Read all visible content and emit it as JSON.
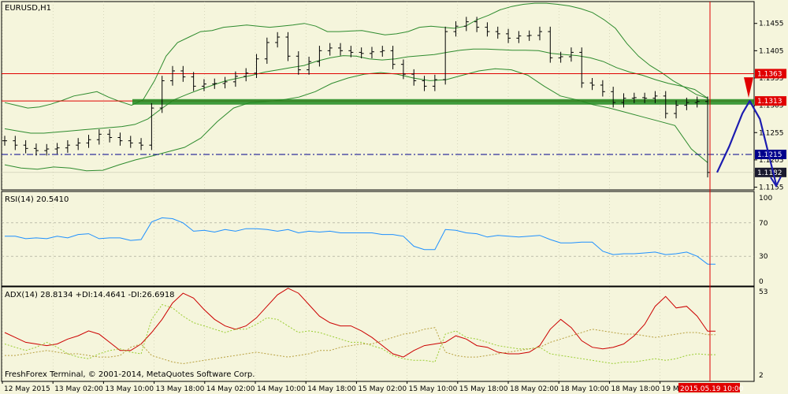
{
  "colors": {
    "background": "#f5f5dc",
    "frame": "#000000",
    "grid": "#b8b89a",
    "candles": "#000000",
    "bollinger": "#2e8b2e",
    "hline_red": "#e00000",
    "hline_green": "#1f8a1f",
    "hline_blue_dash": "#00008b",
    "price_tag_red": "#e00000",
    "price_tag_blue": "#00008b",
    "rsi_line": "#1e90ff",
    "adx_line": "#cc0000",
    "di_plus": "#9acd32",
    "di_minus": "#b8a040",
    "forecast_curve": "#1c1cb0",
    "forecast_arrow_down": "#e00000",
    "vline": "#e00000",
    "date_tag": "#e00000"
  },
  "chart_data": [
    {
      "type": "candlestick",
      "title": "EURUSD,H1",
      "ylim": [
        1.115,
        1.1495
      ],
      "y_ticks": [
        "1.1455",
        "1.1405",
        "1.1355",
        "1.1305",
        "1.1255",
        "1.1205",
        "1.1155"
      ],
      "x_ticks": [
        "12 May 2015",
        "13 May 02:00",
        "13 May 10:00",
        "13 May 18:00",
        "14 May 02:00",
        "14 May 10:00",
        "14 May 18:00",
        "15 May 02:00",
        "15 May 10:00",
        "15 May 18:00",
        "18 May 02:00",
        "18 May 10:00",
        "18 May 18:00",
        "19 May"
      ],
      "closes": [
        1.124,
        1.1232,
        1.1226,
        1.1222,
        1.1225,
        1.1227,
        1.1232,
        1.1236,
        1.1242,
        1.1252,
        1.1246,
        1.124,
        1.1236,
        1.1232,
        1.13,
        1.135,
        1.1368,
        1.1357,
        1.134,
        1.1344,
        1.1345,
        1.1348,
        1.1358,
        1.1364,
        1.139,
        1.142,
        1.143,
        1.1395,
        1.137,
        1.1385,
        1.1405,
        1.141,
        1.1405,
        1.1402,
        1.14,
        1.1403,
        1.1405,
        1.138,
        1.1362,
        1.135,
        1.134,
        1.1352,
        1.144,
        1.145,
        1.1458,
        1.1448,
        1.144,
        1.1436,
        1.1428,
        1.1432,
        1.1433,
        1.144,
        1.1392,
        1.1394,
        1.1402,
        1.1346,
        1.1342,
        1.133,
        1.131,
        1.1318,
        1.1319,
        1.1318,
        1.1322,
        1.129,
        1.1305,
        1.131,
        1.1312,
        1.1182
      ],
      "bb_upper": [
        1.131,
        1.1305,
        1.13,
        1.1302,
        1.1307,
        1.1314,
        1.1322,
        1.1326,
        1.133,
        1.132,
        1.1312,
        1.1305,
        1.1315,
        1.135,
        1.1395,
        1.142,
        1.143,
        1.144,
        1.1442,
        1.1448,
        1.145,
        1.1452,
        1.145,
        1.1448,
        1.145,
        1.1452,
        1.1455,
        1.145,
        1.144,
        1.144,
        1.1441,
        1.1442,
        1.1438,
        1.1434,
        1.1436,
        1.144,
        1.1448,
        1.145,
        1.1448,
        1.1446,
        1.145,
        1.1462,
        1.147,
        1.148,
        1.1486,
        1.149,
        1.1492,
        1.1492,
        1.149,
        1.1487,
        1.1482,
        1.1475,
        1.1462,
        1.1446,
        1.1418,
        1.1395,
        1.1378,
        1.1365,
        1.135,
        1.1338,
        1.1325,
        1.1318
      ],
      "bb_mid": [
        1.1262,
        1.1258,
        1.1254,
        1.1254,
        1.1256,
        1.1258,
        1.126,
        1.1262,
        1.1264,
        1.1266,
        1.127,
        1.128,
        1.1298,
        1.1315,
        1.1325,
        1.1334,
        1.1342,
        1.135,
        1.1355,
        1.136,
        1.1366,
        1.137,
        1.1374,
        1.1378,
        1.1386,
        1.1392,
        1.1396,
        1.1395,
        1.139,
        1.1388,
        1.139,
        1.1394,
        1.1396,
        1.1398,
        1.1402,
        1.1406,
        1.1408,
        1.1408,
        1.1407,
        1.1406,
        1.1406,
        1.1405,
        1.14,
        1.1398,
        1.1396,
        1.1392,
        1.1385,
        1.1374,
        1.1366,
        1.136,
        1.1352,
        1.1345,
        1.134,
        1.1334,
        1.1318
      ],
      "bb_lower": [
        1.1196,
        1.119,
        1.1188,
        1.1192,
        1.119,
        1.1185,
        1.1186,
        1.1196,
        1.1205,
        1.1212,
        1.122,
        1.1228,
        1.1245,
        1.1275,
        1.13,
        1.131,
        1.1312,
        1.1315,
        1.132,
        1.133,
        1.1345,
        1.1355,
        1.1362,
        1.1365,
        1.1362,
        1.1355,
        1.135,
        1.1352,
        1.136,
        1.1368,
        1.1372,
        1.137,
        1.136,
        1.134,
        1.1322,
        1.1315,
        1.1306,
        1.13,
        1.1292,
        1.1284,
        1.1276,
        1.1268,
        1.1225,
        1.12
      ],
      "hlines": [
        {
          "label": "1.1363",
          "value": 1.1363,
          "style": "red"
        },
        {
          "label": "1.1313",
          "value": 1.1313,
          "style": "red"
        },
        {
          "label": "",
          "value": 1.1312,
          "style": "green-zone"
        },
        {
          "label": "1.1215",
          "value": 1.1215,
          "style": "blue-dash"
        },
        {
          "label": "1.1182",
          "value": 1.1182,
          "style": "current"
        }
      ],
      "vline_label": "2015.05.19 10:00",
      "forecast_points": [
        [
          1.1182,
          0
        ],
        [
          1.123,
          0.3
        ],
        [
          1.129,
          0.62
        ],
        [
          1.1313,
          0.8
        ],
        [
          1.128,
          1.05
        ],
        [
          1.116,
          1.45
        ]
      ]
    },
    {
      "type": "line",
      "title": "RSI(14) 20.5410",
      "ylim": [
        0,
        100
      ],
      "y_ticks": [
        "100",
        "70",
        "30",
        "0"
      ],
      "levels": [
        70,
        30
      ],
      "values": [
        54,
        54,
        51,
        52,
        51,
        54,
        52,
        56,
        57,
        51,
        52,
        52,
        49,
        50,
        71,
        76,
        75,
        70,
        60,
        61,
        59,
        62,
        60,
        63,
        63,
        62,
        60,
        62,
        58,
        60,
        59,
        60,
        58,
        58,
        58,
        58,
        56,
        56,
        54,
        42,
        38,
        38,
        62,
        61,
        58,
        57,
        53,
        55,
        54,
        53,
        54,
        55,
        50,
        46,
        46,
        47,
        47,
        36,
        32,
        33,
        33,
        34,
        35,
        32,
        33,
        35,
        30,
        20.54
      ]
    },
    {
      "type": "line",
      "title": "ADX(14) 28.8134 +DI:14.4641 -DI:26.6918",
      "ylim": [
        2,
        53
      ],
      "y_ticks": [
        "53",
        "2"
      ],
      "series": [
        {
          "name": "ADX",
          "values": [
            28,
            25,
            22,
            21,
            20,
            21,
            24,
            26,
            29,
            27,
            22,
            17,
            17,
            21,
            28,
            36,
            46,
            52,
            49,
            42,
            36,
            32,
            30,
            32,
            37,
            44,
            51,
            55,
            52,
            45,
            38,
            34,
            32,
            32,
            29,
            25,
            20,
            15,
            13,
            17,
            20,
            21,
            22,
            26,
            24,
            20,
            19,
            16,
            15,
            15,
            16,
            20,
            30,
            36,
            31,
            23,
            19,
            18,
            19,
            21,
            26,
            33,
            44,
            50,
            43,
            44,
            38,
            28.8
          ]
        },
        {
          "name": "+DI",
          "values": [
            21,
            19,
            17,
            19,
            22,
            19,
            15,
            13,
            12,
            15,
            17,
            18,
            16,
            15,
            36,
            45,
            43,
            38,
            34,
            32,
            30,
            28,
            30,
            30,
            33,
            37,
            36,
            32,
            28,
            29,
            28,
            26,
            24,
            22,
            22,
            20,
            18,
            14,
            12,
            11,
            11,
            10,
            27,
            29,
            25,
            24,
            22,
            20,
            19,
            18,
            18,
            19,
            15,
            14,
            13,
            12,
            11,
            10,
            9,
            10,
            10,
            11,
            12,
            11,
            12,
            14,
            15,
            14.46
          ]
        },
        {
          "name": "-DI",
          "values": [
            14,
            14,
            15,
            16,
            17,
            16,
            15,
            15,
            14,
            13,
            13,
            14,
            19,
            21,
            14,
            12,
            10,
            9,
            10,
            11,
            12,
            13,
            14,
            15,
            16,
            15,
            14,
            13,
            14,
            15,
            17,
            17,
            19,
            20,
            21,
            21,
            23,
            25,
            27,
            28,
            30,
            31,
            16,
            14,
            13,
            13,
            14,
            15,
            16,
            17,
            18,
            19,
            22,
            24,
            26,
            28,
            30,
            29,
            28,
            27,
            27,
            26,
            25,
            26,
            27,
            28,
            28,
            26.69
          ]
        }
      ]
    }
  ],
  "footer": {
    "copyright": "FreshForex Terminal, © 2001-2014, MetaQuotes Software Corp."
  }
}
